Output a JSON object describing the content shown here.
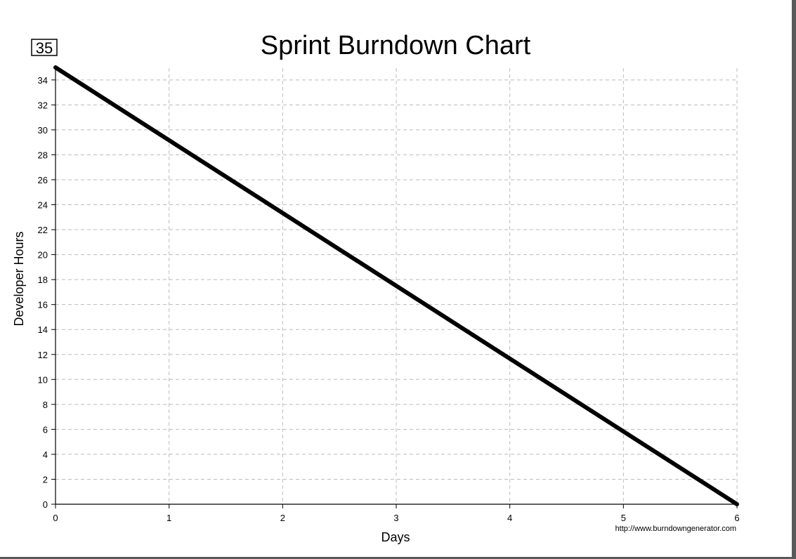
{
  "badge": "35",
  "chart_data": {
    "type": "line",
    "title": "Sprint Burndown Chart",
    "xlabel": "Days",
    "ylabel": "Developer Hours",
    "x_ticks": [
      0,
      1,
      2,
      3,
      4,
      5,
      6
    ],
    "y_ticks": [
      0,
      2,
      4,
      6,
      8,
      10,
      12,
      14,
      16,
      18,
      20,
      22,
      24,
      26,
      28,
      30,
      32,
      34
    ],
    "xlim": [
      0,
      6
    ],
    "ylim": [
      0,
      35
    ],
    "grid": true,
    "series": [
      {
        "x": [
          0,
          6
        ],
        "values": [
          35,
          0
        ]
      }
    ],
    "line_color": "#000000",
    "grid_color": "#bbbbbb",
    "footer_url": "http://www.burndowngenerator.com"
  }
}
